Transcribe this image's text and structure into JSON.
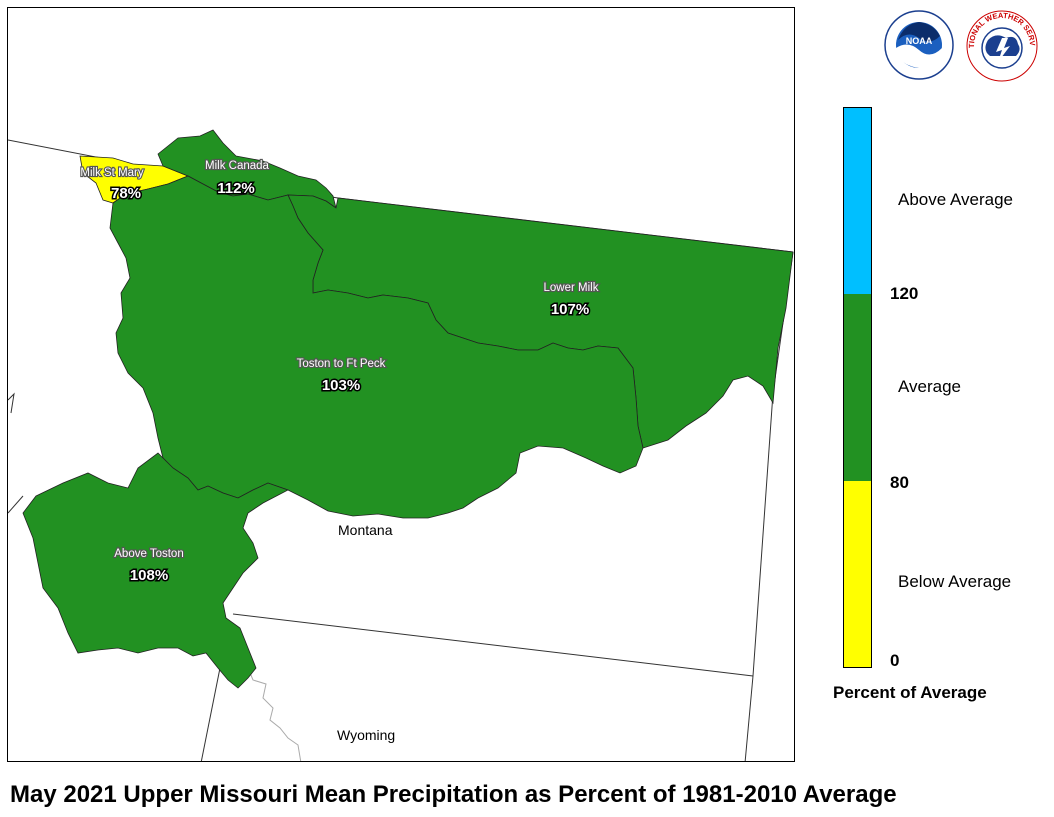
{
  "title": "May 2021 Upper Missouri Mean Precipitation as Percent of 1981-2010 Average",
  "logos": {
    "noaa": {
      "icon": "noaa-logo",
      "text": "NOAA"
    },
    "nws": {
      "icon": "nws-logo",
      "text": "NATIONAL WEATHER SERVICE"
    }
  },
  "colors": {
    "below": "#ffff00",
    "average": "#229122",
    "above": "#00bfff"
  },
  "basins": [
    {
      "name": "Milk St Mary",
      "value": "78%",
      "category": "below"
    },
    {
      "name": "Milk Canada",
      "value": "112%",
      "category": "average"
    },
    {
      "name": "Lower Milk",
      "value": "107%",
      "category": "average"
    },
    {
      "name": "Toston to Ft Peck",
      "value": "103%",
      "category": "average"
    },
    {
      "name": "Above Toston",
      "value": "108%",
      "category": "average"
    }
  ],
  "states": [
    "Montana",
    "Wyoming"
  ],
  "legend": {
    "title": "Percent of Average",
    "categories": [
      {
        "label": "Above Average",
        "color": "#00bfff",
        "range": [
          120,
          200
        ]
      },
      {
        "label": "Average",
        "color": "#229122",
        "range": [
          80,
          120
        ]
      },
      {
        "label": "Below Average",
        "color": "#ffff00",
        "range": [
          0,
          80
        ]
      }
    ],
    "ticks": [
      "120",
      "80",
      "0"
    ]
  }
}
